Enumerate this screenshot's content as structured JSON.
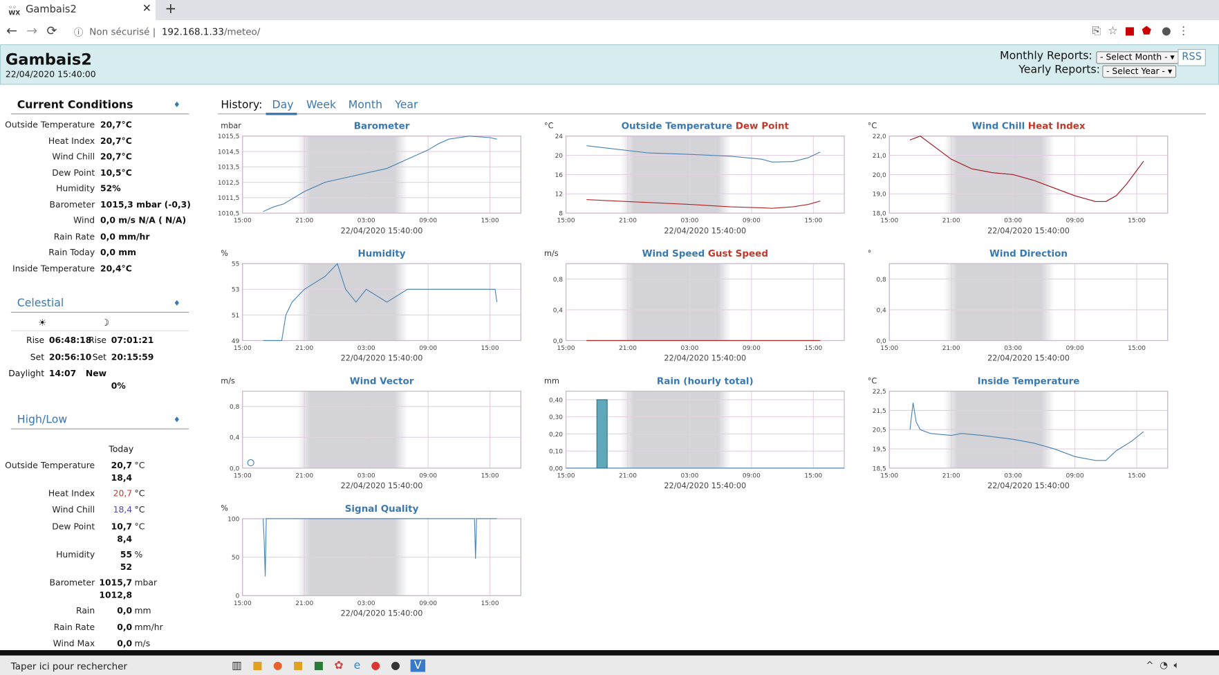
{
  "browser": {
    "tab_title": "Gambais2",
    "url_security": "Non sécurisé",
    "url_host": "192.168.1.33",
    "url_path": "/meteo/"
  },
  "header": {
    "title": "Gambais2",
    "date": "22/04/2020 15:40:00",
    "monthly_label": "Monthly Reports:",
    "monthly_select": "- Select Month -",
    "yearly_label": "Yearly Reports:",
    "yearly_select": "- Select Year -",
    "rss": "RSS"
  },
  "current": {
    "title": "Current Conditions",
    "rows": [
      [
        "Outside Temperature",
        "20,7°C"
      ],
      [
        "Heat Index",
        "20,7°C"
      ],
      [
        "Wind Chill",
        "20,7°C"
      ],
      [
        "Dew Point",
        "10,5°C"
      ],
      [
        "Humidity",
        "52%"
      ],
      [
        "Barometer",
        "1015,3 mbar (-0,3)"
      ],
      [
        "Wind",
        "0,0 m/s N/A ( N/A)"
      ],
      [
        "Rain Rate",
        "0,0 mm/hr"
      ],
      [
        "Rain Today",
        "0,0 mm"
      ],
      [
        "Inside Temperature",
        "20,4°C"
      ]
    ]
  },
  "celestial": {
    "title": "Celestial",
    "sun_icon": "☀",
    "moon_icon": "☽",
    "rows": [
      [
        "Rise",
        "06:48:18",
        "Rise",
        "07:01:21"
      ],
      [
        "Set",
        "20:56:10",
        "Set",
        "20:15:59"
      ],
      [
        "Daylight",
        "14:07",
        "New"
      ]
    ],
    "moon_fullness": "0%"
  },
  "highlow": {
    "title": "High/Low",
    "column": "Today",
    "rows": [
      {
        "label": "Outside Temperature",
        "high": "20,7",
        "unit": "°C",
        "low": "18,4"
      },
      {
        "label": "Heat Index",
        "high": "20,7",
        "unit": "°C",
        "color": "#c0392b"
      },
      {
        "label": "Wind Chill",
        "high": "18,4",
        "unit": "°C",
        "color": "#4b4bb0"
      },
      {
        "label": "Dew Point",
        "high": "10,7",
        "unit": "°C",
        "low": "8,4"
      },
      {
        "label": "Humidity",
        "high": "55",
        "unit": "%",
        "low": "52"
      },
      {
        "label": "Barometer",
        "high": "1015,7",
        "unit": "mbar",
        "low": "1012,8"
      },
      {
        "label": "Rain",
        "high": "0,0",
        "unit": "mm"
      },
      {
        "label": "Rain Rate",
        "high": "0,0",
        "unit": "mm/hr"
      },
      {
        "label": "Wind Max",
        "high": "0,0",
        "unit": "m/s"
      }
    ]
  },
  "history": {
    "label": "History:",
    "tabs": [
      "Day",
      "Week",
      "Month",
      "Year"
    ],
    "active": 0
  },
  "charts": [
    {
      "type": "line",
      "unit": "mbar",
      "date": "22/04/2020 15:40:00",
      "xlim": [
        0,
        27
      ],
      "xticks": [
        {
          "value": 0,
          "label": "15:00"
        },
        {
          "value": 6,
          "label": "21:00"
        },
        {
          "value": 12,
          "label": "03:00"
        },
        {
          "value": 18,
          "label": "09:00"
        },
        {
          "value": 24,
          "label": "15:00"
        }
      ],
      "ylim": [
        1010.5,
        1015.5
      ],
      "yticks": [
        {
          "value": 1010.5,
          "label": "1010,5"
        },
        {
          "value": 1011.5,
          "label": "1011,5"
        },
        {
          "value": 1012.5,
          "label": "1012,5"
        },
        {
          "value": 1013.5,
          "label": "1013,5"
        },
        {
          "value": 1014.5,
          "label": "1014,5"
        },
        {
          "value": 1015.5,
          "label": "1015,5"
        }
      ],
      "x": [
        2,
        3,
        4,
        6,
        8,
        10,
        12,
        14,
        16,
        18,
        19,
        20,
        22,
        24,
        24.67
      ],
      "series": [
        {
          "name": "Barometer",
          "color": "#4682b4",
          "values": [
            1010.6,
            1010.9,
            1011.1,
            1011.9,
            1012.5,
            1012.8,
            1013.1,
            1013.4,
            1014.0,
            1014.6,
            1015.0,
            1015.3,
            1015.5,
            1015.4,
            1015.3
          ]
        }
      ]
    },
    {
      "type": "line",
      "unit": "°C",
      "date": "22/04/2020 15:40:00",
      "xlim": [
        0,
        27
      ],
      "xticks": [
        {
          "value": 0,
          "label": "15:00"
        },
        {
          "value": 6,
          "label": "21:00"
        },
        {
          "value": 12,
          "label": "03:00"
        },
        {
          "value": 18,
          "label": "09:00"
        },
        {
          "value": 24,
          "label": "15:00"
        }
      ],
      "ylim": [
        8,
        24
      ],
      "yticks": [
        8,
        12,
        16,
        20,
        24
      ],
      "x": [
        2,
        4,
        8,
        12,
        16,
        19,
        20,
        22,
        23.5,
        24.67
      ],
      "series": [
        {
          "name": "Outside Temperature",
          "color": "#4682b4",
          "values": [
            22.0,
            21.5,
            20.5,
            20.2,
            19.8,
            19.2,
            18.6,
            18.7,
            19.5,
            20.7
          ]
        },
        {
          "name": "Dew Point",
          "color": "#b22222",
          "values": [
            10.8,
            10.6,
            10.2,
            9.8,
            9.3,
            9.1,
            9.0,
            9.3,
            9.8,
            10.5
          ]
        }
      ]
    },
    {
      "type": "line",
      "unit": "°C",
      "date": "22/04/2020 15:40:00",
      "xlim": [
        0,
        27
      ],
      "xticks": [
        {
          "value": 0,
          "label": "15:00"
        },
        {
          "value": 6,
          "label": "21:00"
        },
        {
          "value": 12,
          "label": "03:00"
        },
        {
          "value": 18,
          "label": "09:00"
        },
        {
          "value": 24,
          "label": "15:00"
        }
      ],
      "ylim": [
        18,
        22
      ],
      "yticks": [
        {
          "value": 18,
          "label": "18,0"
        },
        {
          "value": 19,
          "label": "19,0"
        },
        {
          "value": 20,
          "label": "20,0"
        },
        {
          "value": 21,
          "label": "21,0"
        },
        {
          "value": 22,
          "label": "22,0"
        }
      ],
      "x": [
        2,
        3,
        4,
        6,
        8,
        10,
        12,
        14,
        16,
        18,
        20,
        21,
        22,
        23,
        24.67
      ],
      "series": [
        {
          "name": "Wind Chill",
          "color": "#4682b4",
          "values": [
            21.8,
            22.0,
            21.6,
            20.8,
            20.3,
            20.1,
            20.0,
            19.7,
            19.3,
            18.9,
            18.6,
            18.6,
            18.9,
            19.5,
            20.7
          ]
        },
        {
          "name": "Heat Index",
          "color": "#b22222",
          "values": [
            21.8,
            22.0,
            21.6,
            20.8,
            20.3,
            20.1,
            20.0,
            19.7,
            19.3,
            18.9,
            18.6,
            18.6,
            18.9,
            19.5,
            20.7
          ]
        }
      ]
    },
    {
      "type": "line",
      "unit": "%",
      "date": "22/04/2020 15:40:00",
      "xlim": [
        0,
        27
      ],
      "xticks": [
        {
          "value": 0,
          "label": "15:00"
        },
        {
          "value": 6,
          "label": "21:00"
        },
        {
          "value": 12,
          "label": "03:00"
        },
        {
          "value": 18,
          "label": "09:00"
        },
        {
          "value": 24,
          "label": "15:00"
        }
      ],
      "ylim": [
        49,
        55
      ],
      "yticks": [
        49,
        51,
        53,
        55
      ],
      "x": [
        2,
        3.8,
        4.2,
        4.8,
        6,
        8,
        9.2,
        10,
        11,
        12,
        14,
        16,
        20,
        24.5,
        24.67
      ],
      "series": [
        {
          "name": "Humidity",
          "color": "#4682b4",
          "values": [
            49,
            49,
            51,
            52,
            53,
            54,
            55,
            53,
            52,
            53,
            52,
            53,
            53,
            53,
            52
          ]
        }
      ]
    },
    {
      "type": "line",
      "unit": "m/s",
      "date": "22/04/2020 15:40:00",
      "xlim": [
        0,
        27
      ],
      "xticks": [
        {
          "value": 0,
          "label": "15:00"
        },
        {
          "value": 6,
          "label": "21:00"
        },
        {
          "value": 12,
          "label": "03:00"
        },
        {
          "value": 18,
          "label": "09:00"
        },
        {
          "value": 24,
          "label": "15:00"
        }
      ],
      "ylim": [
        0,
        1
      ],
      "yticks": [
        {
          "value": 0,
          "label": "0,0"
        },
        {
          "value": 0.4,
          "label": "0,4"
        },
        {
          "value": 0.8,
          "label": "0,8"
        }
      ],
      "x": [
        2,
        24.67
      ],
      "series": [
        {
          "name": "Wind Speed",
          "color": "#4682b4",
          "values": [
            0,
            0
          ]
        },
        {
          "name": "Gust Speed",
          "color": "#b22222",
          "values": [
            0,
            0
          ]
        }
      ]
    },
    {
      "type": "line",
      "unit": "°",
      "date": "22/04/2020 15:40:00",
      "xlim": [
        0,
        27
      ],
      "xticks": [
        {
          "value": 0,
          "label": "15:00"
        },
        {
          "value": 6,
          "label": "21:00"
        },
        {
          "value": 12,
          "label": "03:00"
        },
        {
          "value": 18,
          "label": "09:00"
        },
        {
          "value": 24,
          "label": "15:00"
        }
      ],
      "ylim": [
        0,
        1
      ],
      "yticks": [
        {
          "value": 0,
          "label": "0,0"
        },
        {
          "value": 0.4,
          "label": "0,4"
        },
        {
          "value": 0.8,
          "label": "0,8"
        }
      ],
      "x": [],
      "series": [
        {
          "name": "Wind Direction",
          "color": "#4682b4",
          "values": []
        }
      ]
    },
    {
      "type": "vector",
      "unit": "m/s",
      "date": "22/04/2020 15:40:00",
      "xlim": [
        0,
        27
      ],
      "xticks": [
        {
          "value": 0,
          "label": "15:00"
        },
        {
          "value": 6,
          "label": "21:00"
        },
        {
          "value": 12,
          "label": "03:00"
        },
        {
          "value": 18,
          "label": "09:00"
        },
        {
          "value": 24,
          "label": "15:00"
        }
      ],
      "ylim": [
        0,
        1
      ],
      "yticks": [
        {
          "value": 0,
          "label": "0,0"
        },
        {
          "value": 0.4,
          "label": "0,4"
        },
        {
          "value": 0.8,
          "label": "0,8"
        }
      ],
      "x": [
        0.8
      ],
      "series": [
        {
          "name": "Wind Vector",
          "color": "#4682b4",
          "values": [
            0.07
          ]
        }
      ]
    },
    {
      "type": "bar",
      "unit": "mm",
      "date": "22/04/2020 15:40:00",
      "xlim": [
        0,
        27
      ],
      "xticks": [
        {
          "value": 0,
          "label": "15:00"
        },
        {
          "value": 6,
          "label": "21:00"
        },
        {
          "value": 12,
          "label": "03:00"
        },
        {
          "value": 18,
          "label": "09:00"
        },
        {
          "value": 24,
          "label": "15:00"
        }
      ],
      "ylim": [
        0,
        0.45
      ],
      "yticks": [
        {
          "value": 0,
          "label": "0,00"
        },
        {
          "value": 0.1,
          "label": "0,10"
        },
        {
          "value": 0.2,
          "label": "0,20"
        },
        {
          "value": 0.3,
          "label": "0,30"
        },
        {
          "value": 0.4,
          "label": "0,40"
        }
      ],
      "x": [
        2,
        3,
        4,
        5,
        6,
        7,
        8,
        9,
        10,
        11,
        12,
        13,
        14,
        15,
        16,
        17,
        18,
        19,
        20,
        21,
        22,
        23,
        24
      ],
      "series": [
        {
          "name": "Rain (hourly total)",
          "color": "#5fa8bc",
          "values": [
            0,
            0.4,
            0,
            0,
            0,
            0,
            0,
            0,
            0,
            0,
            0,
            0,
            0,
            0,
            0,
            0,
            0,
            0,
            0,
            0,
            0,
            0,
            0
          ]
        }
      ]
    },
    {
      "type": "line",
      "unit": "°C",
      "date": "22/04/2020 15:40:00",
      "xlim": [
        0,
        27
      ],
      "xticks": [
        {
          "value": 0,
          "label": "15:00"
        },
        {
          "value": 6,
          "label": "21:00"
        },
        {
          "value": 12,
          "label": "03:00"
        },
        {
          "value": 18,
          "label": "09:00"
        },
        {
          "value": 24,
          "label": "15:00"
        }
      ],
      "ylim": [
        18.5,
        22.5
      ],
      "yticks": [
        {
          "value": 18.5,
          "label": "18,5"
        },
        {
          "value": 19.5,
          "label": "19,5"
        },
        {
          "value": 20.5,
          "label": "20,5"
        },
        {
          "value": 21.5,
          "label": "21,5"
        },
        {
          "value": 22.5,
          "label": "22,5"
        }
      ],
      "x": [
        2,
        2.3,
        2.6,
        3,
        4,
        6,
        7,
        9,
        12,
        14,
        16,
        18,
        20,
        21,
        22,
        23.5,
        24.67
      ],
      "series": [
        {
          "name": "Inside Temperature",
          "color": "#4682b4",
          "values": [
            20.5,
            21.9,
            20.9,
            20.5,
            20.3,
            20.2,
            20.3,
            20.2,
            20.0,
            19.8,
            19.5,
            19.1,
            18.9,
            18.9,
            19.4,
            19.9,
            20.4
          ]
        }
      ]
    },
    {
      "type": "line",
      "unit": "%",
      "date": "22/04/2020 15:40:00",
      "xlim": [
        0,
        27
      ],
      "xticks": [
        {
          "value": 0,
          "label": "15:00"
        },
        {
          "value": 6,
          "label": "21:00"
        },
        {
          "value": 12,
          "label": "03:00"
        },
        {
          "value": 18,
          "label": "09:00"
        },
        {
          "value": 24,
          "label": "15:00"
        }
      ],
      "ylim": [
        0,
        100
      ],
      "yticks": [
        0,
        50,
        100
      ],
      "x": [
        2,
        2.1,
        2.2,
        2.3,
        8,
        18,
        22.5,
        22.6,
        22.7,
        24.67
      ],
      "series": [
        {
          "name": "Signal Quality",
          "color": "#4682b4",
          "values": [
            100,
            70,
            25,
            100,
            100,
            100,
            100,
            48,
            100,
            100
          ]
        }
      ]
    }
  ],
  "taskbar": {
    "search": "Taper ici pour rechercher"
  }
}
